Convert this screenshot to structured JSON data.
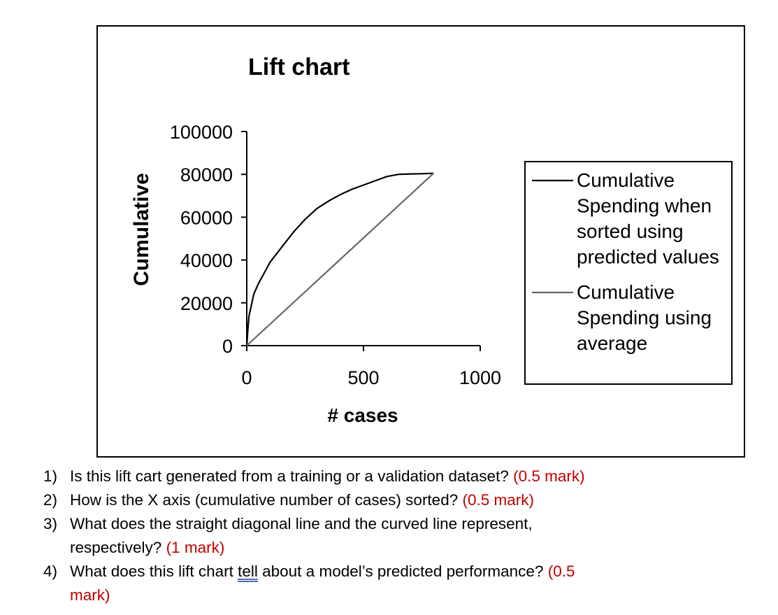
{
  "chart_data": {
    "type": "line",
    "title": "Lift chart",
    "xlabel": "# cases",
    "ylabel": "Cumulative",
    "xlim": [
      0,
      1000
    ],
    "ylim": [
      0,
      100000
    ],
    "xticks": [
      "0",
      "500",
      "1000"
    ],
    "yticks": [
      "0",
      "20000",
      "40000",
      "60000",
      "80000",
      "100000"
    ],
    "grid": false,
    "legend_position": "right",
    "series": [
      {
        "name": "Cumulative Spending when sorted using predicted values",
        "color": "#000000",
        "x": [
          0,
          5,
          10,
          20,
          30,
          50,
          75,
          100,
          150,
          200,
          250,
          300,
          350,
          400,
          450,
          500,
          550,
          600,
          650,
          700,
          750,
          800
        ],
        "y": [
          0,
          8000,
          14000,
          19000,
          24000,
          29000,
          34000,
          39000,
          46000,
          53000,
          59000,
          64000,
          67500,
          70500,
          73000,
          75000,
          77000,
          79000,
          80000,
          80200,
          80300,
          80500
        ]
      },
      {
        "name": "Cumulative Spending using average",
        "color": "#666666",
        "x": [
          0,
          800
        ],
        "y": [
          0,
          80500
        ]
      }
    ],
    "legend_entries": [
      [
        "Cumulative",
        "Spending when",
        "sorted using",
        "predicted values"
      ],
      [
        "Cumulative",
        "Spending using",
        "average"
      ]
    ]
  },
  "questions": [
    {
      "num": "1)",
      "parts": [
        {
          "text": "Is this lift cart generated from a training or a validation dataset? "
        },
        {
          "text": "(0.5 mark)",
          "style": "mark"
        }
      ]
    },
    {
      "num": "2)",
      "parts": [
        {
          "text": "How is the X axis (cumulative number of cases) sorted? "
        },
        {
          "text": "(0.5 mark)",
          "style": "mark"
        }
      ]
    },
    {
      "num": "3)",
      "parts": [
        {
          "text": "What does the straight diagonal line and the curved line represent,"
        },
        {
          "text": "",
          "style": "br"
        },
        {
          "text": "respectively? "
        },
        {
          "text": "(1 mark)",
          "style": "mark"
        }
      ]
    },
    {
      "num": "4)",
      "parts": [
        {
          "text": "What does this lift chart "
        },
        {
          "text": "tell",
          "style": "underlined"
        },
        {
          "text": " about a model’s predicted performance? "
        },
        {
          "text": "(0.5",
          "style": "mark"
        },
        {
          "text": "",
          "style": "br"
        },
        {
          "text": "mark)",
          "style": "mark"
        }
      ]
    }
  ]
}
